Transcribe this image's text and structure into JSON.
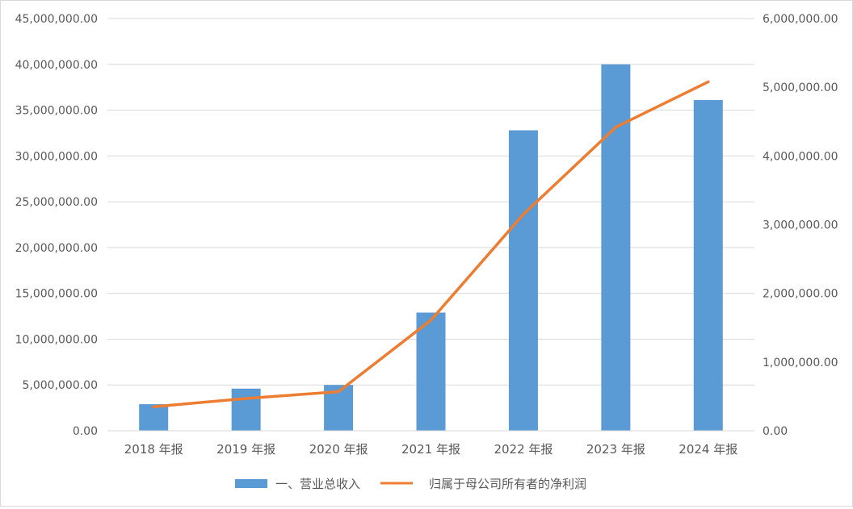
{
  "chart_data": {
    "type": "bar",
    "title": "",
    "categories": [
      "2018 年报",
      "2019 年报",
      "2020 年报",
      "2021 年报",
      "2022 年报",
      "2023 年报",
      "2024 年报"
    ],
    "series": [
      {
        "name": "一、营业总收入",
        "type": "bar",
        "axis": "left",
        "color": "#5b9bd5",
        "values": [
          2900000,
          4600000,
          5000000,
          12900000,
          32800000,
          40000000,
          36100000
        ]
      },
      {
        "name": "归属于母公司所有者的净利润",
        "type": "line",
        "axis": "right",
        "color": "#ed7d31",
        "values": [
          350000,
          470000,
          570000,
          1610000,
          3150000,
          4420000,
          5080000
        ]
      }
    ],
    "y_left": {
      "range": [
        0,
        45000000
      ],
      "ticks": [
        "0.00",
        "5,000,000.00",
        "10,000,000.00",
        "15,000,000.00",
        "20,000,000.00",
        "25,000,000.00",
        "30,000,000.00",
        "35,000,000.00",
        "40,000,000.00",
        "45,000,000.00"
      ]
    },
    "y_right": {
      "range": [
        0,
        6000000
      ],
      "ticks": [
        "0.00",
        "1,000,000.00",
        "2,000,000.00",
        "3,000,000.00",
        "4,000,000.00",
        "5,000,000.00",
        "6,000,000.00"
      ]
    },
    "grid": true,
    "legend_position": "bottom"
  }
}
